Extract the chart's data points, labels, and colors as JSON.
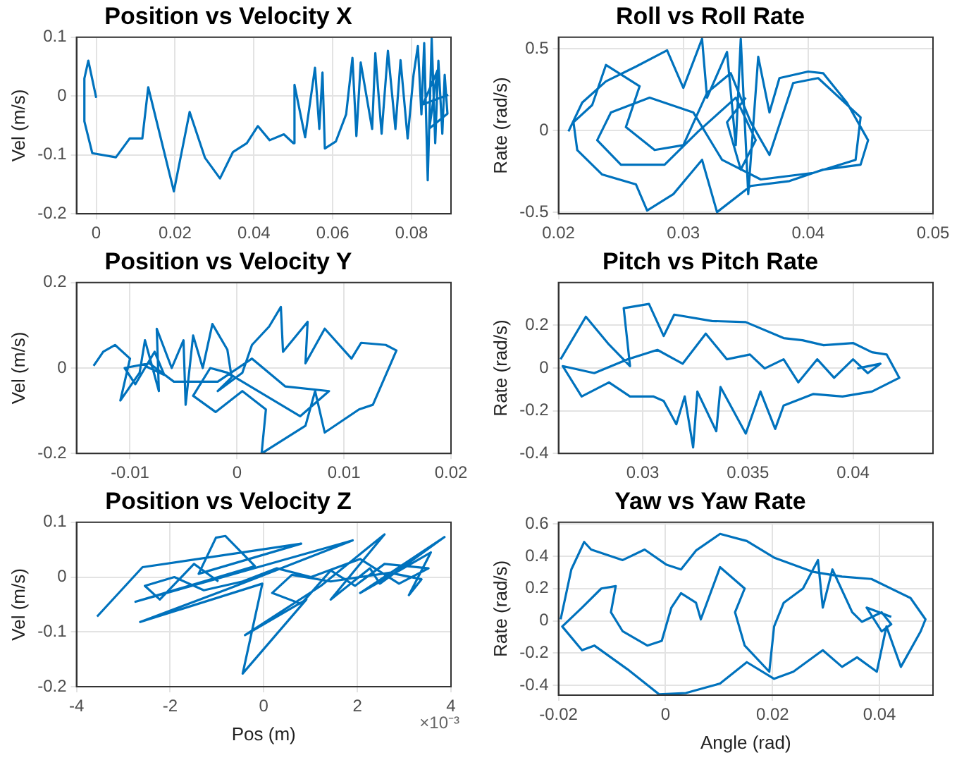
{
  "chart_data": [
    {
      "type": "line",
      "title": "Position vs Velocity X",
      "ylabel": "Vel (m/s)",
      "xlim": [
        -0.005,
        0.09
      ],
      "xticks": [
        0,
        0.02,
        0.04,
        0.06,
        0.08
      ],
      "ylim": [
        -0.2,
        0.1
      ],
      "yticks": [
        -0.2,
        -0.1,
        0,
        0.1
      ],
      "grid": true,
      "legend": false,
      "marker": "none",
      "series": [
        {
          "color": "#0072bd",
          "x": [
            0,
            -0.002,
            -0.003,
            -0.003,
            -0.001,
            0.005,
            0.0085,
            0.0117,
            0.0132,
            0.0197,
            0.0237,
            0.0276,
            0.0314,
            0.0347,
            0.0382,
            0.041,
            0.044,
            0.0476,
            0.05,
            0.0503,
            0.053,
            0.0555,
            0.0566,
            0.0574,
            0.058,
            0.0608,
            0.0634,
            0.065,
            0.066,
            0.0671,
            0.07,
            0.0708,
            0.0724,
            0.074,
            0.0759,
            0.0772,
            0.079,
            0.0805,
            0.0816,
            0.0825,
            0.0832,
            0.0841,
            0.0851,
            0.086,
            0.0868,
            0.0878,
            0.0884,
            0.0891,
            0.0845,
            0.0866,
            0.0829,
            0.0893
          ],
          "values": [
            -0.003,
            0.06,
            0.03,
            -0.043,
            -0.097,
            -0.104,
            -0.072,
            -0.072,
            0.015,
            -0.162,
            -0.027,
            -0.105,
            -0.14,
            -0.095,
            -0.08,
            -0.051,
            -0.075,
            -0.065,
            -0.08,
            0.019,
            -0.07,
            0.048,
            -0.056,
            0.04,
            -0.089,
            -0.077,
            -0.031,
            0.065,
            -0.068,
            0.057,
            -0.056,
            0.073,
            -0.064,
            0.077,
            -0.056,
            0.061,
            -0.072,
            0.036,
            0.085,
            -0.031,
            0.09,
            -0.143,
            0.098,
            -0.08,
            0.06,
            -0.064,
            0.036,
            -0.03,
            -0.055,
            0.044,
            -0.014,
            0.002
          ]
        }
      ]
    },
    {
      "type": "line",
      "title": "Roll vs Roll Rate",
      "ylabel": "Rate (rad/s)",
      "xlim": [
        0.02,
        0.05
      ],
      "xticks": [
        0.02,
        0.03,
        0.04,
        0.05
      ],
      "ylim": [
        -0.51,
        0.57
      ],
      "yticks": [
        -0.5,
        0,
        0.5
      ],
      "grid": true,
      "legend": false,
      "marker": "none",
      "series": [
        {
          "color": "#0072bd",
          "x": [
            0.0208,
            0.0219,
            0.0238,
            0.0262,
            0.0287,
            0.03,
            0.0315,
            0.0319,
            0.0335,
            0.0342,
            0.0346,
            0.0352,
            0.036,
            0.0369,
            0.0377,
            0.04,
            0.0412,
            0.0431,
            0.0448,
            0.0442,
            0.0412,
            0.0385,
            0.0354,
            0.0327,
            0.0315,
            0.0292,
            0.0271,
            0.0262,
            0.0235,
            0.0215,
            0.0212,
            0.0227,
            0.0238,
            0.0265,
            0.0254,
            0.0277,
            0.03,
            0.0319,
            0.0338,
            0.0354,
            0.0369,
            0.0388,
            0.0408,
            0.0442,
            0.0438,
            0.0404,
            0.0362,
            0.0331,
            0.0308,
            0.0273,
            0.0242,
            0.0231,
            0.025,
            0.0285,
            0.0312,
            0.0342,
            0.0358,
            0.0346,
            0.0335,
            0.035
          ],
          "values": [
            -0.006,
            0.17,
            0.3,
            0.39,
            0.49,
            0.26,
            0.56,
            0.2,
            0.48,
            -0.09,
            0.56,
            -0.39,
            0.45,
            0.11,
            0.32,
            0.36,
            0.35,
            0.17,
            -0.06,
            -0.21,
            -0.24,
            -0.31,
            -0.34,
            -0.5,
            -0.18,
            -0.39,
            -0.49,
            -0.33,
            -0.27,
            -0.12,
            0.05,
            0.155,
            0.4,
            0.27,
            0.02,
            -0.12,
            -0.09,
            0.23,
            0.35,
            0.05,
            -0.15,
            0.29,
            0.32,
            0.08,
            -0.18,
            -0.26,
            -0.3,
            -0.18,
            0.11,
            0.2,
            0.11,
            -0.06,
            -0.21,
            -0.21,
            -0.006,
            0.2,
            -0.06,
            -0.24,
            0.05,
            0.2
          ]
        }
      ]
    },
    {
      "type": "line",
      "title": "Position vs Velocity Y",
      "ylabel": "Vel (m/s)",
      "xlim": [
        -0.015,
        0.02
      ],
      "xticks": [
        -0.01,
        0,
        0.01,
        0.02
      ],
      "ylim": [
        -0.2,
        0.2
      ],
      "yticks": [
        -0.2,
        0,
        0.2
      ],
      "grid": true,
      "legend": false,
      "marker": "none",
      "series": [
        {
          "color": "#0072bd",
          "x": [
            -0.0134,
            -0.0125,
            -0.0114,
            -0.01,
            -0.0109,
            -0.0091,
            -0.0086,
            -0.0073,
            -0.0075,
            -0.0061,
            -0.005,
            -0.0048,
            -0.0041,
            -0.0032,
            -0.0023,
            -0.0009,
            -0.0005,
            -0.0018,
            0.0005,
            0.0014,
            0.003,
            0.0041,
            0.0043,
            0.0066,
            0.0064,
            0.0082,
            0.0107,
            0.0116,
            0.0139,
            0.0149,
            0.0127,
            0.0114,
            0.0082,
            0.0073,
            0.0064,
            0.0023,
            0.0027,
            0.0005,
            -0.002,
            -0.0041,
            -0.0025,
            -0.0009,
            0.0059,
            0.0086,
            0.0045,
            0.0014,
            -0.0018,
            -0.0059,
            -0.0082,
            -0.0105,
            -0.0095,
            -0.0077,
            -0.0068,
            -0.0086
          ],
          "values": [
            0.005,
            0.038,
            0.054,
            0.022,
            -0.076,
            -0.011,
            0.065,
            -0.054,
            0.092,
            0,
            0.065,
            -0.086,
            0.076,
            0,
            0.103,
            0.043,
            -0.022,
            -0.054,
            -0.011,
            0.054,
            0.097,
            0.143,
            0.038,
            0.108,
            0.011,
            0.092,
            0.022,
            0.059,
            0.054,
            0.041,
            -0.086,
            -0.097,
            -0.151,
            -0.054,
            -0.135,
            -0.2,
            -0.097,
            -0.054,
            -0.103,
            -0.065,
            0,
            -0.011,
            -0.113,
            -0.054,
            -0.043,
            0.022,
            -0.032,
            -0.032,
            0.011,
            0,
            -0.038,
            0.038,
            -0.016,
            0.005
          ]
        }
      ]
    },
    {
      "type": "line",
      "title": "Pitch vs Pitch Rate",
      "ylabel": "Rate (rad/s)",
      "xlim": [
        0.026,
        0.0438
      ],
      "xticks": [
        0.03,
        0.035,
        0.04
      ],
      "ylim": [
        -0.4,
        0.4
      ],
      "yticks": [
        -0.4,
        -0.2,
        0,
        0.2
      ],
      "grid": true,
      "legend": false,
      "marker": "none",
      "series": [
        {
          "color": "#0072bd",
          "x": [
            0.0261,
            0.0273,
            0.0284,
            0.0294,
            0.0291,
            0.0303,
            0.031,
            0.0315,
            0.0333,
            0.0349,
            0.0367,
            0.0376,
            0.0386,
            0.04,
            0.0409,
            0.0416,
            0.0422,
            0.0409,
            0.0395,
            0.0381,
            0.0367,
            0.0363,
            0.0356,
            0.0349,
            0.0337,
            0.0335,
            0.0326,
            0.0324,
            0.032,
            0.0316,
            0.031,
            0.0305,
            0.0294,
            0.0284,
            0.0271,
            0.0262,
            0.0277,
            0.0293,
            0.0307,
            0.0319,
            0.033,
            0.034,
            0.0351,
            0.0358,
            0.0367,
            0.0374,
            0.0383,
            0.0391,
            0.04,
            0.0407,
            0.0413,
            0.0402
          ],
          "values": [
            0.041,
            0.24,
            0.11,
            0.009,
            0.28,
            0.3,
            0.15,
            0.25,
            0.22,
            0.215,
            0.14,
            0.13,
            0.107,
            0.117,
            0.074,
            0.063,
            -0.046,
            -0.11,
            -0.133,
            -0.122,
            -0.176,
            -0.285,
            -0.11,
            -0.307,
            -0.089,
            -0.296,
            -0.11,
            -0.372,
            -0.133,
            -0.263,
            -0.154,
            -0.133,
            -0.133,
            -0.067,
            -0.133,
            0.009,
            -0.024,
            0.041,
            0.085,
            0.02,
            0.161,
            0.041,
            0.063,
            -0.002,
            0.041,
            -0.067,
            0.041,
            -0.046,
            0.041,
            -0.024,
            0.02,
            -0.002
          ]
        }
      ]
    },
    {
      "type": "line",
      "title": "Position vs Velocity Z",
      "xlabel": "Pos (m)",
      "ylabel": "Vel (m/s)",
      "xlim": [
        -4,
        4
      ],
      "xticks": [
        -4,
        -2,
        0,
        2,
        4
      ],
      "ylim": [
        -0.2,
        0.1
      ],
      "yticks": [
        -0.2,
        -0.1,
        0,
        0.1
      ],
      "grid": true,
      "legend": false,
      "marker": "none",
      "annotations": [
        "×10⁻³"
      ],
      "series": [
        {
          "color": "#0072bd",
          "x": [
            -3.56,
            -2.59,
            0.8,
            -1.39,
            -1.02,
            -0.82,
            -0.19,
            -2.74,
            1.9,
            -0.71,
            -2.64,
            -0.03,
            -0.45,
            0.91,
            -0.4,
            1.22,
            2.58,
            1.43,
            2.27,
            2.48,
            3.86,
            2.06,
            3.57,
            3.1,
            3.37,
            2.69,
            1.43,
            0.6,
            0.18,
            0.8,
            1.43,
            1.95,
            2.58,
            3.52,
            2.89,
            2.06,
            1.01,
            0.28,
            -0.45,
            -1.28,
            -1.91,
            -2.54,
            -2.22,
            -1.49,
            -0.97
          ],
          "values": [
            -0.072,
            0.018,
            0.061,
            0.006,
            0.072,
            0.075,
            0.02,
            -0.045,
            0.067,
            -0.02,
            -0.082,
            -0.012,
            -0.176,
            -0.041,
            -0.106,
            -0.016,
            0.078,
            -0.041,
            0.016,
            -0.012,
            0.073,
            -0.029,
            0.045,
            -0.033,
            -0.004,
            0.008,
            -0.008,
            0.004,
            -0.029,
            -0.049,
            0.012,
            -0.016,
            0.024,
            0.016,
            -0.012,
            0.033,
            0,
            0.016,
            -0.008,
            -0.024,
            0,
            -0.016,
            -0.041,
            0.024,
            -0.008
          ]
        }
      ]
    },
    {
      "type": "line",
      "title": "Yaw vs Yaw Rate",
      "xlabel": "Angle (rad)",
      "ylabel": "Rate (rad/s)",
      "xlim": [
        -0.02,
        0.05
      ],
      "xticks": [
        -0.02,
        0,
        0.02,
        0.04
      ],
      "ylim": [
        -0.46,
        0.61
      ],
      "yticks": [
        -0.4,
        -0.2,
        0,
        0.2,
        0.4,
        0.6
      ],
      "grid": true,
      "legend": false,
      "marker": "none",
      "series": [
        {
          "color": "#0072bd",
          "x": [
            -0.0196,
            -0.0176,
            -0.0152,
            -0.0139,
            -0.008,
            -0.0039,
            0.0002,
            0.0029,
            0.0057,
            0.0102,
            0.0152,
            0.0203,
            0.0276,
            0.033,
            0.0385,
            0.0458,
            0.0486,
            0.0477,
            0.044,
            0.0413,
            0.0395,
            0.0358,
            0.033,
            0.0294,
            0.0239,
            0.0203,
            0.0152,
            0.0102,
            0.0038,
            -0.0012,
            -0.0071,
            -0.0133,
            -0.0156,
            -0.0193,
            -0.0156,
            -0.012,
            -0.0093,
            -0.0102,
            -0.008,
            -0.0034,
            -0.0007,
            0.0011,
            0.0029,
            0.0057,
            0.0066,
            0.0102,
            0.0148,
            0.013,
            0.0148,
            0.0194,
            0.0203,
            0.0221,
            0.0257,
            0.0285,
            0.0294,
            0.0312,
            0.0349,
            0.0367,
            0.0404,
            0.0422,
            0.0404,
            0.0376,
            0.0422
          ],
          "values": [
            0.009,
            0.318,
            0.488,
            0.441,
            0.376,
            0.441,
            0.347,
            0.318,
            0.435,
            0.538,
            0.494,
            0.391,
            0.303,
            0.274,
            0.259,
            0.141,
            0.009,
            -0.065,
            -0.285,
            -0.035,
            -0.315,
            -0.226,
            -0.285,
            -0.182,
            -0.315,
            -0.359,
            -0.256,
            -0.388,
            -0.447,
            -0.455,
            -0.3,
            -0.153,
            -0.182,
            -0.035,
            0.082,
            0.2,
            0.215,
            0.053,
            -0.065,
            -0.153,
            -0.124,
            0.082,
            0.171,
            0.112,
            0.009,
            0.332,
            0.2,
            0.053,
            -0.153,
            -0.315,
            -0.035,
            0.112,
            0.2,
            0.376,
            0.082,
            0.318,
            0.053,
            -0.006,
            0.053,
            -0.021,
            -0.065,
            0.082,
            0.024
          ]
        }
      ]
    }
  ]
}
